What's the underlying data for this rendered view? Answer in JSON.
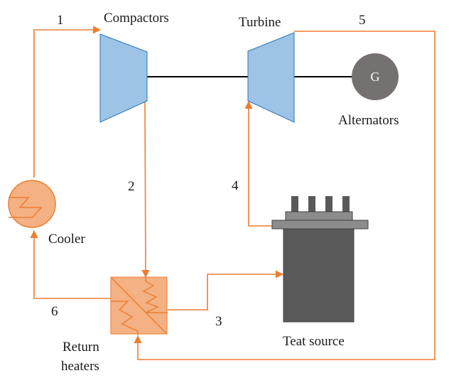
{
  "labels": {
    "compactors": "Compactors",
    "turbine": "Turbine",
    "alternators": "Alternators",
    "generator_symbol": "G",
    "cooler": "Cooler",
    "heat_source": "Teat source",
    "return_heaters_line1": "Return",
    "return_heaters_line2": "heaters"
  },
  "state_points": {
    "p1": "1",
    "p2": "2",
    "p3": "3",
    "p4": "4",
    "p5": "5",
    "p6": "6"
  },
  "colors": {
    "flow_line": "#ED7D31",
    "component_fill_blue": "#9DC3E6",
    "component_stroke_blue": "#2E75B6",
    "exchanger_fill": "#F4B183",
    "heater_body": "#595959",
    "heater_cap": "#7F7F7F",
    "generator": "#767171"
  }
}
